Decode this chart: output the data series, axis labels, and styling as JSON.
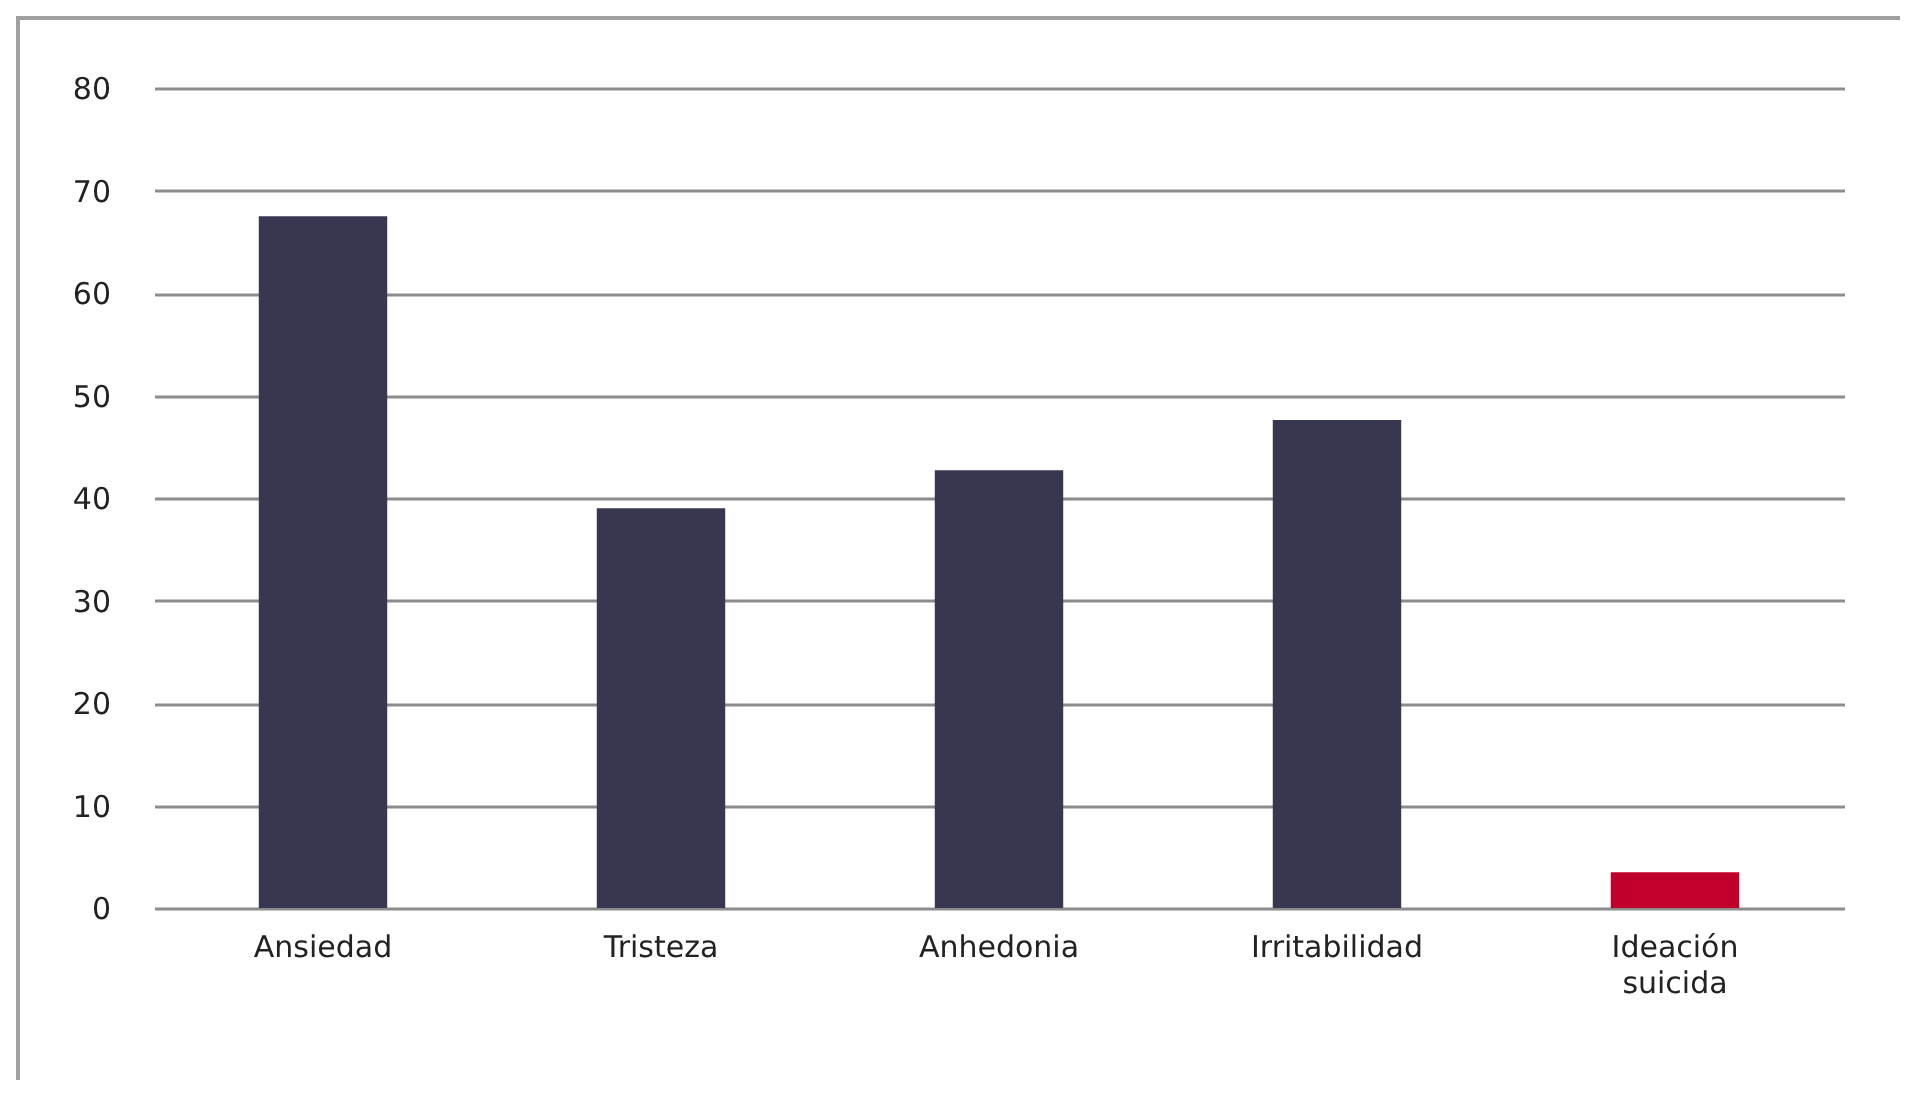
{
  "chart_data": {
    "type": "bar",
    "categories": [
      "Ansiedad",
      "Tristeza",
      "Anhedonia",
      "Irritabilidad",
      "Ideación suicida"
    ],
    "values": [
      67.5,
      39.0,
      42.7,
      47.6,
      3.5
    ],
    "colors": [
      "#383751",
      "#383751",
      "#383751",
      "#383751",
      "#c0002a"
    ],
    "ylim": [
      0,
      80
    ],
    "yticks": [
      0,
      10,
      20,
      30,
      40,
      50,
      60,
      70,
      80
    ],
    "grid": "y"
  }
}
